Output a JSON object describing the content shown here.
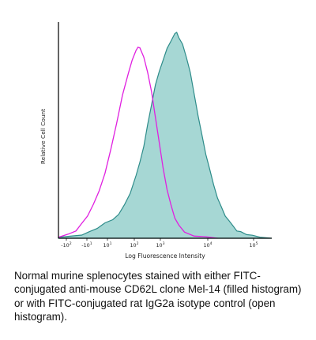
{
  "chart_data": {
    "type": "histogram-overlay",
    "xlabel": "Log Fluorescence Intensity",
    "ylabel": "Relative Cell Count",
    "x_scale": "log (biexponential)",
    "x_ticks": [
      {
        "base": "-10",
        "exp": "2"
      },
      {
        "base": "-10",
        "exp": "1"
      },
      {
        "base": "10",
        "exp": "1"
      },
      {
        "base": "10",
        "exp": "2"
      },
      {
        "base": "10",
        "exp": "3"
      },
      {
        "base": "10",
        "exp": "4"
      },
      {
        "base": "10",
        "exp": "5"
      }
    ],
    "series": [
      {
        "style": "filled",
        "color": "#2e8c8a",
        "fill": "#a6d7d4",
        "points": [
          [
            0.0,
            0.0
          ],
          [
            0.06,
            0.01
          ],
          [
            0.12,
            0.02
          ],
          [
            0.16,
            0.03
          ],
          [
            0.2,
            0.05
          ],
          [
            0.24,
            0.07
          ],
          [
            0.28,
            0.09
          ],
          [
            0.31,
            0.12
          ],
          [
            0.34,
            0.16
          ],
          [
            0.37,
            0.22
          ],
          [
            0.4,
            0.3
          ],
          [
            0.42,
            0.37
          ],
          [
            0.44,
            0.45
          ],
          [
            0.46,
            0.55
          ],
          [
            0.48,
            0.65
          ],
          [
            0.5,
            0.74
          ],
          [
            0.52,
            0.81
          ],
          [
            0.54,
            0.87
          ],
          [
            0.56,
            0.92
          ],
          [
            0.58,
            0.96
          ],
          [
            0.6,
            0.99
          ],
          [
            0.61,
            1.0
          ],
          [
            0.62,
            0.98
          ],
          [
            0.64,
            0.94
          ],
          [
            0.66,
            0.88
          ],
          [
            0.68,
            0.8
          ],
          [
            0.7,
            0.7
          ],
          [
            0.72,
            0.6
          ],
          [
            0.74,
            0.5
          ],
          [
            0.76,
            0.41
          ],
          [
            0.78,
            0.33
          ],
          [
            0.8,
            0.26
          ],
          [
            0.82,
            0.2
          ],
          [
            0.84,
            0.15
          ],
          [
            0.86,
            0.11
          ],
          [
            0.88,
            0.08
          ],
          [
            0.9,
            0.06
          ],
          [
            0.92,
            0.04
          ],
          [
            0.94,
            0.03
          ],
          [
            0.97,
            0.02
          ],
          [
            1.0,
            0.01
          ],
          [
            1.04,
            0.005
          ],
          [
            1.1,
            0.0
          ]
        ]
      },
      {
        "style": "open",
        "color": "#e020e0",
        "points": [
          [
            0.0,
            0.0
          ],
          [
            0.05,
            0.02
          ],
          [
            0.09,
            0.04
          ],
          [
            0.12,
            0.07
          ],
          [
            0.15,
            0.11
          ],
          [
            0.18,
            0.16
          ],
          [
            0.21,
            0.23
          ],
          [
            0.24,
            0.32
          ],
          [
            0.27,
            0.43
          ],
          [
            0.3,
            0.56
          ],
          [
            0.33,
            0.69
          ],
          [
            0.36,
            0.8
          ],
          [
            0.38,
            0.87
          ],
          [
            0.4,
            0.91
          ],
          [
            0.41,
            0.93
          ],
          [
            0.42,
            0.92
          ],
          [
            0.44,
            0.88
          ],
          [
            0.46,
            0.81
          ],
          [
            0.48,
            0.71
          ],
          [
            0.5,
            0.59
          ],
          [
            0.52,
            0.46
          ],
          [
            0.54,
            0.34
          ],
          [
            0.56,
            0.24
          ],
          [
            0.58,
            0.16
          ],
          [
            0.6,
            0.1
          ],
          [
            0.62,
            0.06
          ],
          [
            0.65,
            0.03
          ],
          [
            0.7,
            0.015
          ],
          [
            0.76,
            0.005
          ],
          [
            0.82,
            0.0
          ]
        ]
      }
    ],
    "grid": false,
    "legend": "none"
  },
  "caption": "Normal murine splenocytes stained with either FITC-conjugated anti-mouse CD62L clone Mel-14 (filled histogram) or with FITC-conjugated rat IgG2a isotype control (open histogram)."
}
